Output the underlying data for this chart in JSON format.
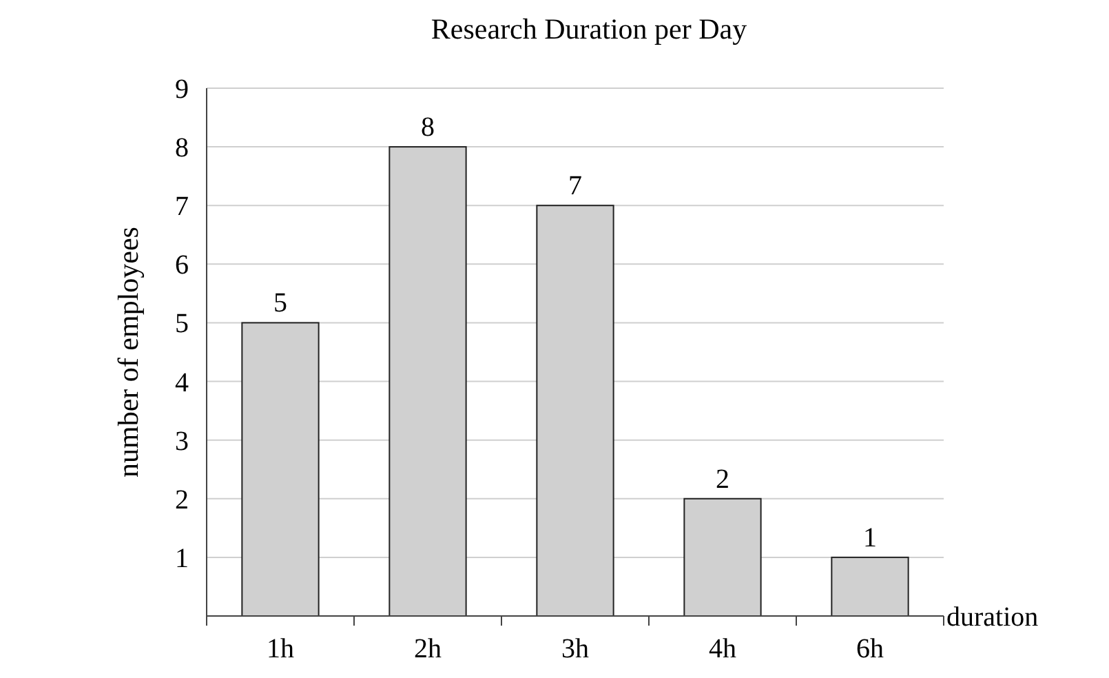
{
  "chart_data": {
    "type": "bar",
    "title": "Research Duration per Day",
    "xlabel": "duration",
    "ylabel": "number of employees",
    "categories": [
      "1h",
      "2h",
      "3h",
      "4h",
      "6h"
    ],
    "values": [
      5,
      8,
      7,
      2,
      1
    ],
    "color": "#d0d0d0",
    "ylim": [
      0,
      9
    ],
    "yticks": [
      1,
      2,
      3,
      4,
      5,
      6,
      7,
      8,
      9
    ],
    "grid": "y",
    "data_labels": true
  }
}
